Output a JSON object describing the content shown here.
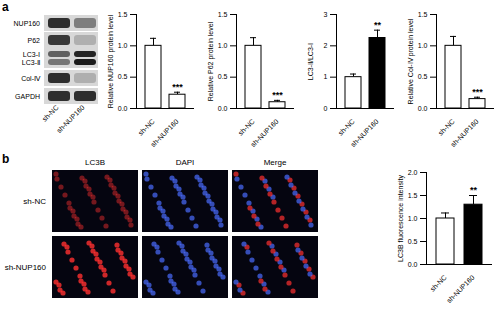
{
  "panel_labels": [
    "a",
    "b"
  ],
  "blot": {
    "bands": [
      "NUP160",
      "P62",
      "LC3-Ⅰ",
      "LC3-Ⅱ",
      "Col-Ⅳ",
      "GAPDH"
    ],
    "groups": [
      "sh-NC",
      "sh-NUP160"
    ]
  },
  "micrographs": {
    "columns": [
      "LC3B",
      "DAPI",
      "Merge"
    ],
    "rows": [
      "sh-NC",
      "sh-NUP160"
    ]
  },
  "chart_data": [
    {
      "type": "bar",
      "y_label": "Relative NUP160 protein level",
      "categories": [
        "sh-NC",
        "sh-NUP160"
      ],
      "values": [
        1.0,
        0.22
      ],
      "errors": [
        0.12,
        0.04
      ],
      "colors": [
        "#ffffff",
        "#ffffff"
      ],
      "annotations": [
        {
          "category": "sh-NUP160",
          "text": "***"
        }
      ],
      "ylim": [
        0,
        1.5
      ],
      "yticks": [
        {
          "value": 0,
          "label": "0.0"
        },
        {
          "value": 0.5,
          "label": "0.5"
        },
        {
          "value": 1,
          "label": "1.0"
        },
        {
          "value": 1.5,
          "label": "1.5"
        }
      ]
    },
    {
      "type": "bar",
      "y_label": "Relative P62 protein level",
      "categories": [
        "sh-NC",
        "sh-NUP160"
      ],
      "values": [
        1.0,
        0.1
      ],
      "errors": [
        0.13,
        0.03
      ],
      "colors": [
        "#ffffff",
        "#ffffff"
      ],
      "annotations": [
        {
          "category": "sh-NUP160",
          "text": "***"
        }
      ],
      "ylim": [
        0,
        1.5
      ],
      "yticks": [
        {
          "value": 0,
          "label": "0.0"
        },
        {
          "value": 0.5,
          "label": "0.5"
        },
        {
          "value": 1,
          "label": "1.0"
        },
        {
          "value": 1.5,
          "label": "1.5"
        }
      ]
    },
    {
      "type": "bar",
      "y_label": "LC3-Ⅱ/LC3-Ⅰ",
      "categories": [
        "sh-NC",
        "sh-NUP160"
      ],
      "values": [
        1.0,
        2.25
      ],
      "errors": [
        0.1,
        0.25
      ],
      "colors": [
        "#ffffff",
        "#000000"
      ],
      "annotations": [
        {
          "category": "sh-NUP160",
          "text": "**"
        }
      ],
      "ylim": [
        0,
        3
      ],
      "yticks": [
        0,
        1,
        2,
        3
      ]
    },
    {
      "type": "bar",
      "y_label": "Relative Col-Ⅳ protein level",
      "categories": [
        "sh-NC",
        "sh-NUP160"
      ],
      "values": [
        1.0,
        0.15
      ],
      "errors": [
        0.15,
        0.03
      ],
      "colors": [
        "#ffffff",
        "#ffffff"
      ],
      "annotations": [
        {
          "category": "sh-NUP160",
          "text": "***"
        }
      ],
      "ylim": [
        0,
        1.5
      ],
      "yticks": [
        {
          "value": 0,
          "label": "0.0"
        },
        {
          "value": 0.5,
          "label": "0.5"
        },
        {
          "value": 1,
          "label": "1.0"
        },
        {
          "value": 1.5,
          "label": "1.5"
        }
      ]
    },
    {
      "type": "bar",
      "y_label": "LC3B fluorescence intensity",
      "categories": [
        "sh-NC",
        "sh-NUP160"
      ],
      "values": [
        1.0,
        1.3
      ],
      "errors": [
        0.12,
        0.2
      ],
      "colors": [
        "#ffffff",
        "#000000"
      ],
      "annotations": [
        {
          "category": "sh-NUP160",
          "text": "**"
        }
      ],
      "ylim": [
        0,
        2.0
      ],
      "yticks": [
        {
          "value": 0,
          "label": "0.0"
        },
        {
          "value": 0.5,
          "label": "0.5"
        },
        {
          "value": 1,
          "label": "1.0"
        },
        {
          "value": 1.5,
          "label": "1.5"
        },
        {
          "value": 2,
          "label": "2.0"
        }
      ]
    }
  ]
}
